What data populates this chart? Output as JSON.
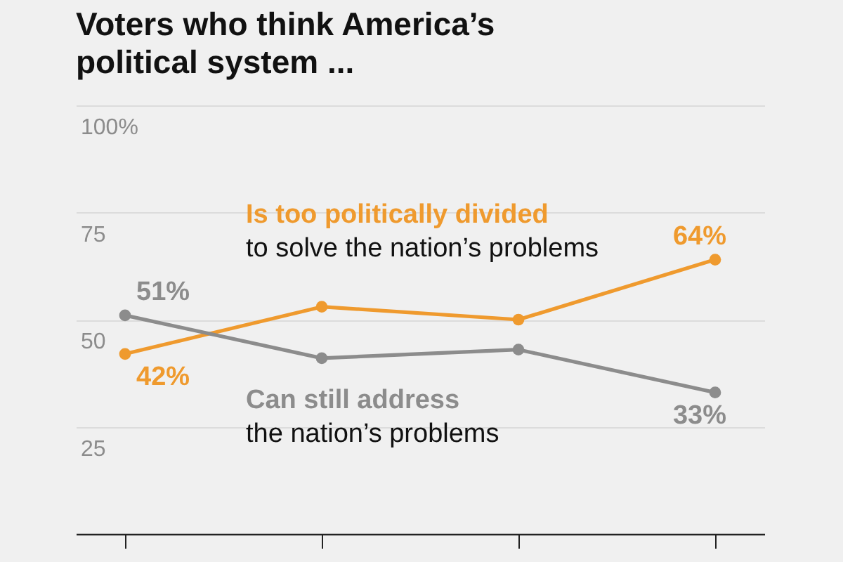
{
  "chart_data": {
    "type": "line",
    "title": "Voters who think America’s political system ...",
    "categories": [
      null,
      null,
      null,
      null
    ],
    "series": [
      {
        "name": "Is too politically divided",
        "color": "#ef9a2e",
        "values": [
          42,
          53,
          50,
          64
        ],
        "value_labels": [
          "42%",
          null,
          null,
          "64%"
        ]
      },
      {
        "name": "Can still address",
        "color": "#8c8c8c",
        "values": [
          51,
          41,
          43,
          33
        ],
        "value_labels": [
          "51%",
          null,
          null,
          "33%"
        ]
      }
    ],
    "annotations": [
      "to solve the nation’s problems",
      "the nation’s problems"
    ],
    "ylim": [
      0,
      100
    ],
    "yticks": [
      {
        "value": 100,
        "label": "100%"
      },
      75,
      50,
      25
    ],
    "grid": "y",
    "legend": false,
    "tick_labels": "y",
    "marker": "circle",
    "line_style": "solid"
  }
}
